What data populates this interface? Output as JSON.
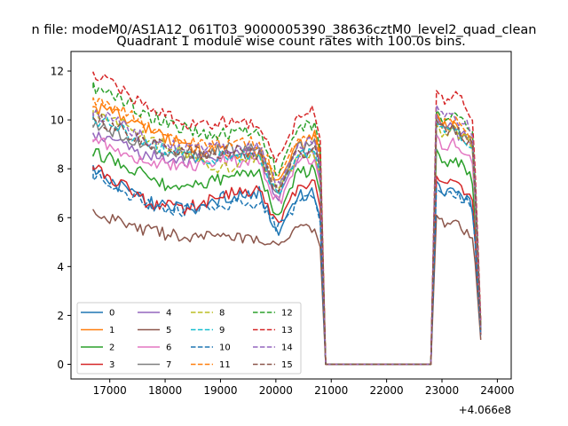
{
  "figure": {
    "suptitle": "n file: modeM0/AS1A12_061T03_9000005390_38636cztM0_level2_quad_clean",
    "title": "Quadrant 1 module wise count rates with 100.0s bins.",
    "x_offset_label": "+4.066e8"
  },
  "chart_data": {
    "type": "line",
    "title": "Quadrant 1 module wise count rates with 100.0s bins.",
    "xlabel": "",
    "ylabel": "",
    "x_offset": 406600000,
    "xlim": [
      16300,
      24250
    ],
    "ylim": [
      -0.6,
      12.8
    ],
    "xticks": [
      17000,
      18000,
      19000,
      20000,
      21000,
      22000,
      23000,
      24000
    ],
    "yticks": [
      0,
      2,
      4,
      6,
      8,
      10,
      12
    ],
    "grid": false,
    "legend_position": "lower-left",
    "legend_columns": 4,
    "bin_size_s": 100,
    "segments": [
      {
        "x_start": 16700,
        "x_end": 20800
      },
      {
        "x_start": 20900,
        "x_end": 22800,
        "value": 0
      },
      {
        "x_start": 22900,
        "x_end": 23700
      }
    ],
    "series": [
      {
        "name": "0",
        "color": "#1f77b4",
        "dash": "solid",
        "seg1": [
          7.9,
          7.5,
          7.0,
          6.6,
          6.5,
          6.3,
          6.5,
          6.8,
          6.9,
          7.0,
          5.3,
          6.9,
          7.0
        ],
        "seg1_end": 6.0,
        "seg3": [
          7.5,
          7.1,
          7.3,
          7.1,
          6.8,
          6.3,
          1.2
        ]
      },
      {
        "name": "1",
        "color": "#ff7f0e",
        "dash": "solid",
        "seg1": [
          10.5,
          10.4,
          10.0,
          9.6,
          9.2,
          9.0,
          8.7,
          8.8,
          8.6,
          8.6,
          7.4,
          8.8,
          9.3
        ],
        "seg1_end": 8.6,
        "seg3": [
          10.3,
          9.7,
          9.8,
          9.5,
          9.3,
          9.0,
          1.5
        ]
      },
      {
        "name": "2",
        "color": "#2ca02c",
        "dash": "solid",
        "seg1": [
          8.6,
          8.4,
          8.1,
          7.6,
          7.3,
          7.2,
          7.4,
          7.6,
          7.8,
          7.8,
          6.0,
          7.8,
          8.0
        ],
        "seg1_end": 7.0,
        "seg3": [
          8.8,
          8.2,
          8.4,
          8.2,
          8.0,
          7.5,
          1.3
        ]
      },
      {
        "name": "3",
        "color": "#d62728",
        "dash": "solid",
        "seg1": [
          8.1,
          7.6,
          7.1,
          6.6,
          6.5,
          6.4,
          6.6,
          6.9,
          7.1,
          7.1,
          5.8,
          7.2,
          7.4
        ],
        "seg1_end": 6.4,
        "seg3": [
          7.7,
          7.2,
          7.4,
          7.2,
          7.0,
          6.5,
          1.2
        ]
      },
      {
        "name": "4",
        "color": "#9467bd",
        "dash": "solid",
        "seg1": [
          9.4,
          9.1,
          8.8,
          8.5,
          8.4,
          8.3,
          8.5,
          8.6,
          8.7,
          8.6,
          6.8,
          8.4,
          8.6
        ],
        "seg1_end": 7.6,
        "seg3": [
          10.2,
          9.5,
          9.7,
          9.4,
          9.3,
          8.8,
          1.4
        ]
      },
      {
        "name": "5",
        "color": "#8c564b",
        "dash": "solid",
        "seg1": [
          6.3,
          6.0,
          5.7,
          5.5,
          5.3,
          5.2,
          5.3,
          5.2,
          5.1,
          5.2,
          4.8,
          5.4,
          5.6
        ],
        "seg1_end": 4.8,
        "seg3": [
          6.1,
          5.7,
          5.9,
          5.6,
          5.5,
          5.2,
          1.0
        ]
      },
      {
        "name": "6",
        "color": "#e377c2",
        "dash": "solid",
        "seg1": [
          9.2,
          8.9,
          8.6,
          8.3,
          8.2,
          8.1,
          8.2,
          8.4,
          8.3,
          8.3,
          6.5,
          8.2,
          8.4
        ],
        "seg1_end": 7.4,
        "seg3": [
          9.4,
          8.9,
          9.1,
          8.9,
          8.7,
          8.3,
          1.3
        ]
      },
      {
        "name": "7",
        "color": "#7f7f7f",
        "dash": "solid",
        "seg1": [
          9.8,
          9.6,
          9.2,
          8.9,
          8.7,
          8.5,
          8.6,
          8.8,
          8.8,
          8.8,
          7.0,
          8.8,
          9.1
        ],
        "seg1_end": 8.0,
        "seg3": [
          10.0,
          9.5,
          9.7,
          9.5,
          9.3,
          8.9,
          1.4
        ]
      },
      {
        "name": "8",
        "color": "#bcbd22",
        "dash": "dashed",
        "seg1": [
          10.2,
          10.0,
          9.6,
          9.2,
          8.9,
          8.6,
          8.2,
          8.0,
          8.2,
          8.4,
          7.2,
          8.4,
          8.6
        ],
        "seg1_end": 7.8,
        "seg3": [
          9.8,
          9.4,
          9.6,
          9.4,
          9.2,
          8.8,
          1.3
        ]
      },
      {
        "name": "9",
        "color": "#17becf",
        "dash": "dashed",
        "seg1": [
          10.0,
          9.8,
          9.4,
          9.0,
          8.8,
          8.5,
          8.4,
          8.5,
          8.5,
          8.5,
          7.0,
          8.5,
          8.7
        ],
        "seg1_end": 7.8,
        "seg3": [
          9.9,
          9.4,
          9.6,
          9.4,
          9.2,
          8.8,
          1.4
        ]
      },
      {
        "name": "10",
        "color": "#1f77b4",
        "dash": "dashed",
        "seg1": [
          7.8,
          7.4,
          6.9,
          6.5,
          6.4,
          6.3,
          6.3,
          6.4,
          6.6,
          6.6,
          5.5,
          6.6,
          6.9
        ],
        "seg1_end": 5.8,
        "seg3": [
          7.2,
          6.9,
          7.1,
          6.9,
          6.7,
          6.2,
          1.2
        ]
      },
      {
        "name": "11",
        "color": "#ff7f0e",
        "dash": "dashed",
        "seg1": [
          10.8,
          10.6,
          10.2,
          9.7,
          9.4,
          9.1,
          9.0,
          9.1,
          9.1,
          9.0,
          7.5,
          9.2,
          9.5
        ],
        "seg1_end": 8.4,
        "seg3": [
          10.2,
          9.8,
          10.0,
          9.8,
          9.6,
          9.1,
          1.5
        ]
      },
      {
        "name": "12",
        "color": "#2ca02c",
        "dash": "dashed",
        "seg1": [
          11.3,
          11.1,
          10.6,
          10.2,
          9.9,
          9.6,
          9.4,
          9.4,
          9.5,
          9.5,
          7.8,
          9.6,
          9.9
        ],
        "seg1_end": 8.8,
        "seg3": [
          10.4,
          10.0,
          10.3,
          10.1,
          9.9,
          9.4,
          1.6
        ]
      },
      {
        "name": "13",
        "color": "#d62728",
        "dash": "dashed",
        "seg1": [
          11.9,
          11.6,
          11.0,
          10.5,
          10.2,
          9.9,
          9.8,
          9.9,
          9.9,
          9.9,
          8.3,
          10.0,
          10.4
        ],
        "seg1_end": 9.2,
        "seg3": [
          11.2,
          10.8,
          11.0,
          10.9,
          10.6,
          10.0,
          1.8
        ]
      },
      {
        "name": "14",
        "color": "#9467bd",
        "dash": "dashed",
        "seg1": [
          10.3,
          10.0,
          9.6,
          9.2,
          9.0,
          8.8,
          8.8,
          8.9,
          8.9,
          8.9,
          7.2,
          8.9,
          9.2
        ],
        "seg1_end": 8.2,
        "seg3": [
          10.6,
          10.0,
          10.2,
          10.0,
          9.8,
          9.3,
          1.5
        ]
      },
      {
        "name": "15",
        "color": "#8c564b",
        "dash": "dashed",
        "seg1": [
          10.1,
          9.8,
          9.4,
          9.1,
          8.9,
          8.7,
          8.6,
          8.7,
          8.7,
          8.6,
          7.0,
          8.6,
          8.9
        ],
        "seg1_end": 8.0,
        "seg3": [
          10.0,
          9.5,
          9.7,
          9.5,
          9.3,
          8.9,
          1.4
        ]
      }
    ]
  }
}
